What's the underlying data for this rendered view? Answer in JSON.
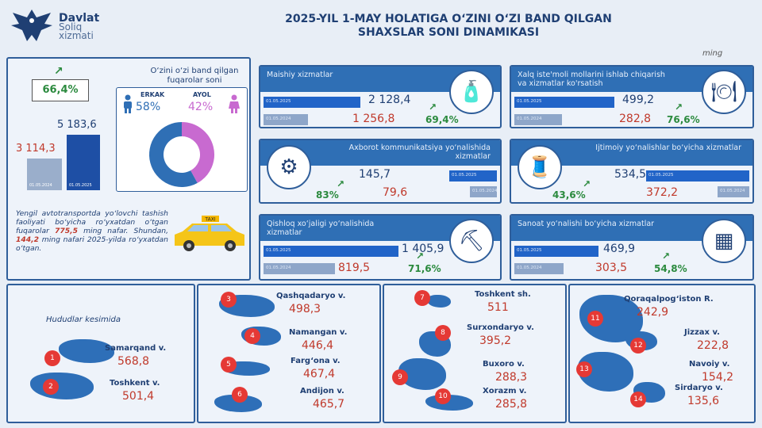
{
  "logo": {
    "line1": "Davlat",
    "line2": "Soliq",
    "line3": "xizmati"
  },
  "title": "2025-YIL 1-MAY HOLATIGA O‘ZINI O‘ZI BAND QILGAN SHAXSLAR SONI DINAMIKASI",
  "unit": "ming",
  "summary": {
    "growth_pct": "66,4%",
    "value_2024": "3 114,3",
    "value_2025": "5 183,6",
    "date_2024": "01.05.2024",
    "date_2025": "01.05.2025",
    "gender_title": "O‘zini o‘zi band qilgan fuqarolar soni",
    "male_label": "ERKAK",
    "male_pct": "58%",
    "female_label": "AYOL",
    "female_pct": "42%",
    "male_share": 0.58,
    "female_share": 0.42,
    "taxi_text_1": "Yengil avtotransportda yo‘lovchi tashish faoliyati bo‘yicha ro‘yxatdan o‘tgan fuqarolar",
    "taxi_value_1": "775,5",
    "taxi_text_2": "ming nafar. Shundan,",
    "taxi_value_2": "144,2",
    "taxi_text_3": "ming nafari 2025-yilda ro‘yxatdan o‘tgan.",
    "taxi_sign": "TAXI"
  },
  "cards": [
    {
      "title": "Maishiy xizmatlar",
      "v2025": "2 128,4",
      "v2024": "1 256,8",
      "pct": "69,4%",
      "date_2025": "01.05.2025",
      "date_2024": "01.05.2024"
    },
    {
      "title": "Xalq iste'moli mollarini ishlab chiqarish va xizmatlar ko'rsatish",
      "v2025": "499,2",
      "v2024": "282,8",
      "pct": "76,6%",
      "date_2025": "01.05.2025",
      "date_2024": "01.05.2024"
    },
    {
      "title": "Axborot kommunikatsiya yo‘nalishida xizmatlar",
      "v2025": "145,7",
      "v2024": "79,6",
      "pct": "83%",
      "date_2025": "01.05.2025",
      "date_2024": "01.05.2024"
    },
    {
      "title": "Ijtimoiy yo‘nalishlar bo‘yicha xizmatlar",
      "v2025": "534,5",
      "v2024": "372,2",
      "pct": "43,6%",
      "date_2025": "01.05.2025",
      "date_2024": "01.05.2024"
    },
    {
      "title": "Qishloq xo‘jaligi yo‘nalishida xizmatlar",
      "v2025": "1 405,9",
      "v2024": "819,5",
      "pct": "71,6%",
      "date_2025": "01.05.2025",
      "date_2024": "01.05.2024"
    },
    {
      "title": "Sanoat yo‘nalishi bo‘yicha xizmatlar",
      "v2025": "469,9",
      "v2024": "303,5",
      "pct": "54,8%",
      "date_2025": "01.05.2025",
      "date_2024": "01.05.2024"
    }
  ],
  "regions_title": "Hududlar kesimida",
  "regions": [
    {
      "n": "1",
      "name": "Samarqand v.",
      "value": "568,8"
    },
    {
      "n": "2",
      "name": "Toshkent v.",
      "value": "501,4"
    },
    {
      "n": "3",
      "name": "Qashqadaryo v.",
      "value": "498,3"
    },
    {
      "n": "4",
      "name": "Namangan v.",
      "value": "446,4"
    },
    {
      "n": "5",
      "name": "Farg‘ona v.",
      "value": "467,4"
    },
    {
      "n": "6",
      "name": "Andijon v.",
      "value": "465,7"
    },
    {
      "n": "7",
      "name": "Toshkent sh.",
      "value": "511"
    },
    {
      "n": "8",
      "name": "Surxondaryo v.",
      "value": "395,2"
    },
    {
      "n": "9",
      "name": "Buxoro v.",
      "value": "288,3"
    },
    {
      "n": "10",
      "name": "Xorazm v.",
      "value": "285,8"
    },
    {
      "n": "11",
      "name": "Qoraqalpog‘iston R.",
      "value": "242,9"
    },
    {
      "n": "12",
      "name": "Jizzax v.",
      "value": "222,8"
    },
    {
      "n": "13",
      "name": "Navoiy v.",
      "value": "154,2"
    },
    {
      "n": "14",
      "name": "Sirdaryo v.",
      "value": "135,6"
    }
  ],
  "colors": {
    "blue": "#2f6fb5",
    "navy": "#1f3f73",
    "red": "#c0392b",
    "green": "#2b8a3e",
    "female": "#c86ad0",
    "male": "#2f6fb5"
  }
}
